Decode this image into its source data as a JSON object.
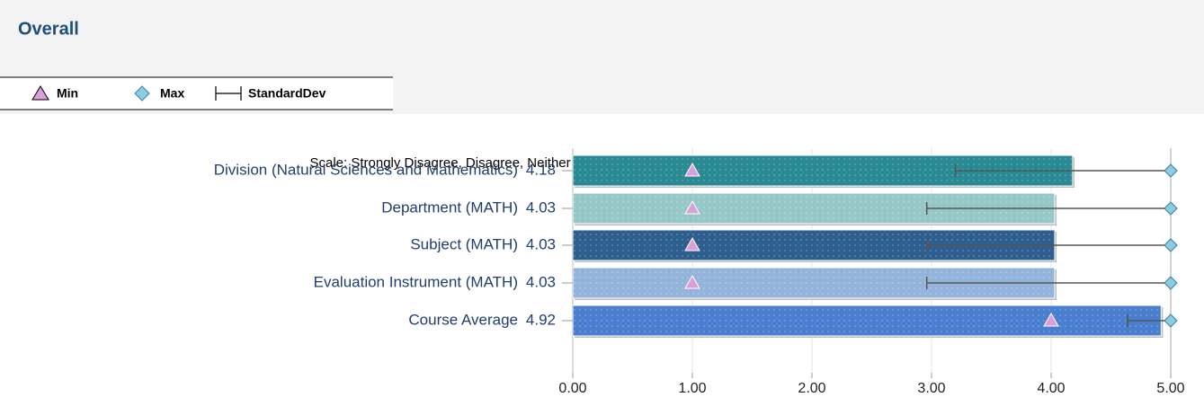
{
  "chart_data": {
    "type": "bar",
    "orientation": "horizontal",
    "title": "Overall",
    "annotation": "Scale: Strongly Disagree, Disagree, Neither Disagree/Agree, Agree, Strongly Agree, Not Applicable",
    "categories": [
      "Division (Natural Sciences and Mathematics)",
      "Department (MATH)",
      "Subject (MATH)",
      "Evaluation Instrument (MATH)",
      "Course Average"
    ],
    "values": [
      4.18,
      4.03,
      4.03,
      4.03,
      4.92
    ],
    "colors": [
      "#2a8a94",
      "#96c8c8",
      "#2e5f8f",
      "#94b4dc",
      "#4a7fd0"
    ],
    "series": [
      {
        "name": "Min",
        "color": "#d9a0d9",
        "marker": "triangle",
        "values": [
          1,
          1,
          1,
          1,
          4
        ]
      },
      {
        "name": "Max",
        "color": "#8ccbe0",
        "marker": "diamond",
        "values": [
          5,
          5,
          5,
          5,
          5
        ]
      },
      {
        "name": "StandardDev",
        "color": "#555555",
        "marker": "errorbar",
        "values": [
          0.98,
          1.07,
          1.07,
          1.07,
          0.28
        ]
      }
    ],
    "xlim": [
      0,
      5
    ],
    "xticks": [
      {
        "value": 0,
        "label": "0.00"
      },
      {
        "value": 1,
        "label": "1.00"
      },
      {
        "value": 2,
        "label": "2.00"
      },
      {
        "value": 3,
        "label": "3.00"
      },
      {
        "value": 4,
        "label": "4.00"
      },
      {
        "value": 5,
        "label": "5.00"
      }
    ],
    "grid": true
  }
}
